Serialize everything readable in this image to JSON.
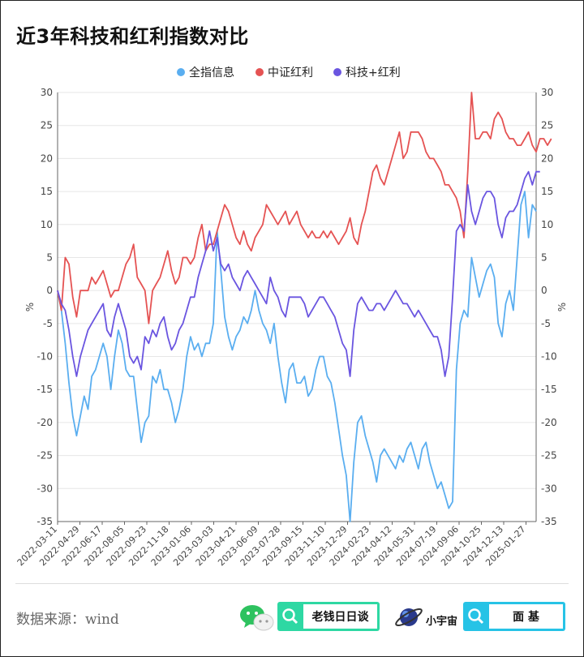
{
  "title": "近3年科技和红利指数对比",
  "source": "数据来源：wind",
  "badges": {
    "wechat_name": "老钱日日谈",
    "site_name": "小宇宙",
    "search_name": "面 基"
  },
  "colors": {
    "series1": "#5aaef0",
    "series2": "#e55353",
    "series3": "#6a55e0",
    "grid": "#e6e6e6"
  },
  "chart_data": {
    "type": "line",
    "title": "近3年科技和红利指数对比",
    "ylabel": "%",
    "ylabel_right": "%",
    "ylim": [
      -35,
      30
    ],
    "yticks": [
      30,
      25,
      20,
      15,
      10,
      5,
      0,
      -5,
      -10,
      -15,
      -20,
      -25,
      -30,
      -35
    ],
    "grid": true,
    "legend_position": "top",
    "x_tick_labels": [
      "2022-03-11",
      "2022-04-29",
      "2022-06-17",
      "2022-08-05",
      "2022-09-23",
      "2022-11-18",
      "2023-01-06",
      "2023-03-03",
      "2023-04-21",
      "2023-06-09",
      "2023-07-28",
      "2023-09-15",
      "2023-11-10",
      "2023-12-29",
      "2024-02-23",
      "2024-04-12",
      "2024-05-31",
      "2024-07-19",
      "2024-09-06",
      "2024-10-25",
      "2024-12-13",
      "2025-01-27"
    ],
    "series": [
      {
        "name": "全指信息",
        "color": "#5aaef0",
        "values": [
          0,
          -3,
          -8,
          -14,
          -19,
          -22,
          -19,
          -16,
          -18,
          -13,
          -12,
          -10,
          -8,
          -10,
          -15,
          -10,
          -6,
          -8,
          -12,
          -13,
          -13,
          -18,
          -23,
          -20,
          -19,
          -13,
          -14,
          -12,
          -15,
          -15,
          -17,
          -20,
          -18,
          -15,
          -10,
          -7,
          -9,
          -8,
          -10,
          -8,
          -8,
          -5,
          9,
          3,
          -4,
          -7,
          -9,
          -7,
          -6,
          -4,
          -5,
          -3,
          0,
          -3,
          -5,
          -6,
          -8,
          -5,
          -10,
          -14,
          -17,
          -12,
          -11,
          -14,
          -14,
          -13,
          -16,
          -15,
          -12,
          -10,
          -10,
          -13,
          -14,
          -17,
          -21,
          -25,
          -28,
          -35,
          -26,
          -20,
          -19,
          -22,
          -24,
          -26,
          -29,
          -25,
          -24,
          -25,
          -26,
          -27,
          -25,
          -26,
          -24,
          -23,
          -25,
          -27,
          -24,
          -23,
          -26,
          -28,
          -30,
          -29,
          -31,
          -33,
          -32,
          -12,
          -5,
          -3,
          -4,
          5,
          2,
          -1,
          1,
          3,
          4,
          2,
          -5,
          -7,
          -2,
          0,
          -3,
          5,
          13,
          15,
          8,
          13,
          12
        ]
      },
      {
        "name": "中证红利",
        "color": "#e55353",
        "values": [
          0,
          -3,
          5,
          4,
          -1,
          -4,
          0,
          0,
          0,
          2,
          1,
          2,
          3,
          1,
          -1,
          0,
          0,
          2,
          4,
          5,
          7,
          2,
          1,
          0,
          -5,
          0,
          1,
          2,
          4,
          6,
          3,
          1,
          2,
          5,
          5,
          4,
          5,
          8,
          10,
          6,
          7,
          7,
          9,
          11,
          13,
          12,
          10,
          8,
          7,
          9,
          7,
          6,
          8,
          9,
          10,
          13,
          12,
          11,
          10,
          11,
          12,
          10,
          11,
          12,
          10,
          9,
          8,
          9,
          8,
          8,
          9,
          8,
          9,
          8,
          7,
          8,
          9,
          11,
          8,
          7,
          10,
          12,
          15,
          18,
          19,
          17,
          16,
          18,
          20,
          22,
          24,
          20,
          21,
          24,
          24,
          24,
          23,
          21,
          20,
          20,
          19,
          18,
          16,
          16,
          15,
          14,
          12,
          8,
          18,
          30,
          23,
          23,
          24,
          24,
          23,
          26,
          27,
          26,
          24,
          23,
          23,
          22,
          22,
          23,
          24,
          22,
          21,
          23,
          23,
          22,
          23
        ]
      },
      {
        "name": "科技+红利",
        "color": "#6a55e0",
        "values": [
          0,
          -2,
          -3,
          -6,
          -10,
          -13,
          -10,
          -8,
          -6,
          -5,
          -4,
          -3,
          -2,
          -6,
          -7,
          -4,
          -2,
          -4,
          -6,
          -10,
          -11,
          -10,
          -12,
          -7,
          -8,
          -6,
          -7,
          -5,
          -4,
          -7,
          -9,
          -8,
          -6,
          -5,
          -3,
          -1,
          -1,
          2,
          4,
          6,
          9,
          6,
          8,
          4,
          3,
          4,
          2,
          1,
          0,
          2,
          3,
          2,
          1,
          0,
          -1,
          -2,
          2,
          0,
          -1,
          -3,
          -4,
          -1,
          -1,
          -1,
          -1,
          -2,
          -4,
          -3,
          -2,
          -1,
          -1,
          -2,
          -3,
          -4,
          -6,
          -8,
          -9,
          -13,
          -6,
          -2,
          -1,
          -2,
          -3,
          -3,
          -2,
          -2,
          -3,
          -2,
          -1,
          0,
          -1,
          -2,
          -2,
          -3,
          -4,
          -3,
          -4,
          -5,
          -6,
          -7,
          -7,
          -9,
          -13,
          -10,
          -1,
          9,
          10,
          9,
          16,
          12,
          10,
          12,
          14,
          15,
          15,
          14,
          10,
          8,
          11,
          12,
          12,
          13,
          15,
          17,
          18,
          16,
          18,
          18
        ]
      }
    ]
  }
}
